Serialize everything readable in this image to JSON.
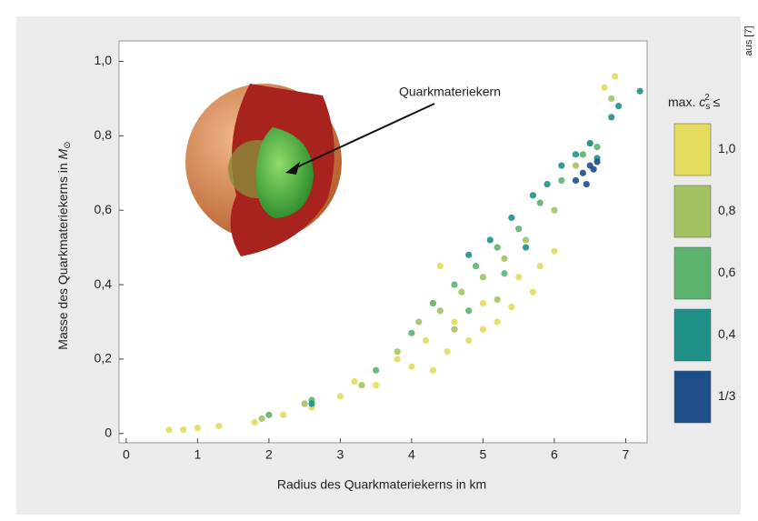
{
  "chart_data": {
    "type": "scatter",
    "x_label": "Radius des Quarkmateriekerns in km",
    "y_label": {
      "text": "Masse des Quarkmateriekerns in ",
      "symbol": "M",
      "sub": "⊙"
    },
    "annotation": "Quarkmateriekern",
    "source": "aus [7]",
    "legend_title": {
      "prefix": "max. ",
      "symbol": "c",
      "sub": "s",
      "sup": "2",
      "suffix": " ≤"
    },
    "xlim": [
      -0.1,
      7.3
    ],
    "ylim": [
      -0.025,
      1.055
    ],
    "xticks": [
      0,
      1,
      2,
      3,
      4,
      5,
      6,
      7
    ],
    "yticks": [
      0,
      {
        "value": 0.2,
        "label": "0,2"
      },
      {
        "value": 0.4,
        "label": "0,4"
      },
      {
        "value": 0.6,
        "label": "0,6"
      },
      {
        "value": 0.8,
        "label": "0,8"
      },
      {
        "value": 1.0,
        "label": "1,0"
      }
    ],
    "series": [
      {
        "name": "1,0",
        "color": "#e4dc5c",
        "x": [
          0.6,
          0.8,
          1.0,
          1.3,
          1.8,
          2.2,
          2.6,
          3.0,
          3.2,
          3.5,
          3.8,
          4.0,
          4.2,
          4.3,
          4.5,
          4.6,
          4.8,
          5.0,
          5.0,
          5.2,
          5.4,
          5.5,
          5.7,
          5.8,
          4.4,
          6.85,
          6.7,
          6.0
        ],
        "y": [
          0.01,
          0.01,
          0.015,
          0.02,
          0.03,
          0.05,
          0.07,
          0.1,
          0.14,
          0.13,
          0.2,
          0.18,
          0.25,
          0.17,
          0.22,
          0.3,
          0.25,
          0.28,
          0.35,
          0.3,
          0.34,
          0.42,
          0.38,
          0.45,
          0.45,
          0.96,
          0.93,
          0.49
        ]
      },
      {
        "name": "0,8",
        "color": "#a3c262",
        "x": [
          1.9,
          2.5,
          3.3,
          3.8,
          4.1,
          4.4,
          4.7,
          5.0,
          5.3,
          5.6,
          6.0,
          6.3,
          6.5,
          4.6,
          5.2,
          6.8
        ],
        "y": [
          0.04,
          0.08,
          0.13,
          0.22,
          0.3,
          0.33,
          0.38,
          0.42,
          0.47,
          0.52,
          0.6,
          0.72,
          0.78,
          0.28,
          0.36,
          0.9
        ]
      },
      {
        "name": "0,6",
        "color": "#5db36e",
        "x": [
          2.0,
          2.6,
          3.5,
          4.0,
          4.3,
          4.6,
          4.9,
          5.2,
          5.5,
          5.8,
          6.1,
          6.4,
          6.6,
          4.8,
          5.3
        ],
        "y": [
          0.05,
          0.09,
          0.17,
          0.27,
          0.35,
          0.4,
          0.45,
          0.5,
          0.55,
          0.62,
          0.68,
          0.75,
          0.77,
          0.33,
          0.43
        ]
      },
      {
        "name": "0,4",
        "color": "#1f9088",
        "x": [
          2.6,
          4.8,
          5.1,
          5.4,
          5.7,
          5.9,
          6.1,
          6.3,
          6.5,
          6.9,
          7.2,
          6.6,
          5.6,
          6.8
        ],
        "y": [
          0.08,
          0.48,
          0.52,
          0.58,
          0.64,
          0.67,
          0.72,
          0.75,
          0.78,
          0.88,
          0.92,
          0.74,
          0.5,
          0.85
        ]
      },
      {
        "name": "1/3",
        "color": "#1d4e8a",
        "x": [
          6.3,
          6.4,
          6.5,
          6.6,
          6.45,
          6.55
        ],
        "y": [
          0.68,
          0.7,
          0.72,
          0.73,
          0.67,
          0.71
        ]
      }
    ]
  }
}
